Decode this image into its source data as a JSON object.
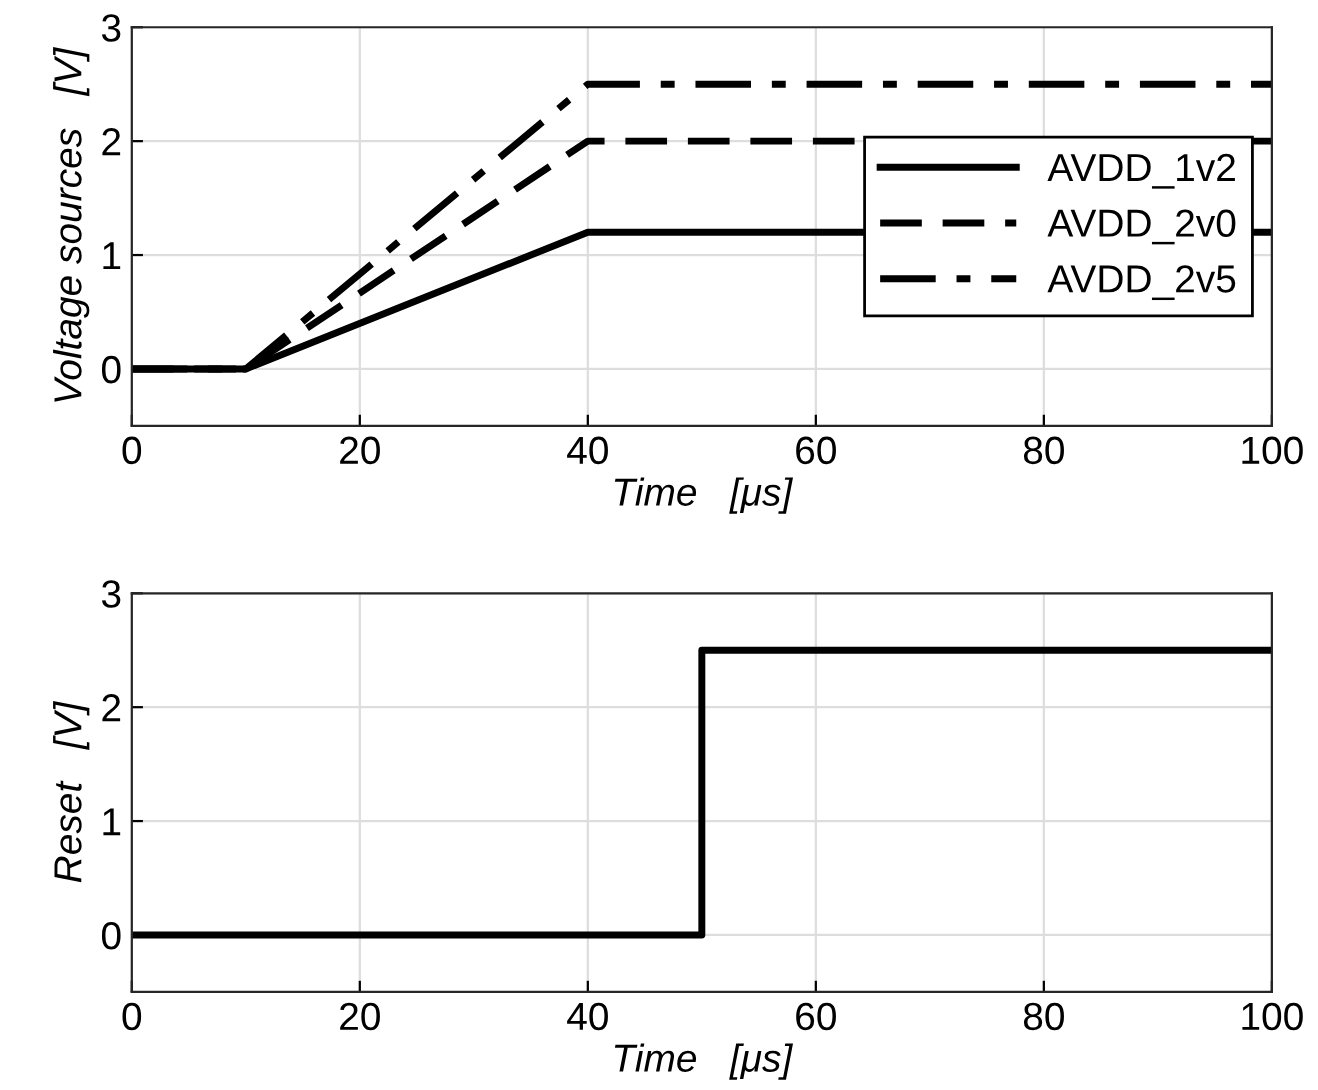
{
  "chart_data": [
    {
      "type": "line",
      "xlabel": "Time   [μs]",
      "ylabel": "Voltage sources   [V]",
      "x": [
        0,
        10,
        40,
        100
      ],
      "xlim": [
        0,
        100
      ],
      "xticks": [
        0,
        20,
        40,
        60,
        80,
        100
      ],
      "ylim": [
        -0.5,
        3
      ],
      "yticks": [
        0,
        1,
        2,
        3
      ],
      "grid": true,
      "legend": "right",
      "series": [
        {
          "name": "AVDD_1v2",
          "color": "#000000",
          "line_style": "solid",
          "values": [
            0,
            0,
            1.2,
            1.2
          ]
        },
        {
          "name": "AVDD_2v0",
          "color": "#000000",
          "line_style": "dashed",
          "values": [
            0,
            0,
            2,
            2
          ]
        },
        {
          "name": "AVDD_2v5",
          "color": "#000000",
          "line_style": "dashdot",
          "values": [
            0,
            0,
            2.5,
            2.5
          ]
        }
      ]
    },
    {
      "type": "line",
      "xlabel": "Time   [μs]",
      "ylabel": "Reset   [V]",
      "x": [
        0,
        50,
        50,
        100
      ],
      "xlim": [
        0,
        100
      ],
      "xticks": [
        0,
        20,
        40,
        60,
        80,
        100
      ],
      "ylim": [
        -0.5,
        3
      ],
      "yticks": [
        0,
        1,
        2,
        3
      ],
      "grid": true,
      "series": [
        {
          "color": "#000000",
          "line_style": "solid",
          "values": [
            0,
            0,
            2.5,
            2.5
          ]
        }
      ]
    }
  ]
}
